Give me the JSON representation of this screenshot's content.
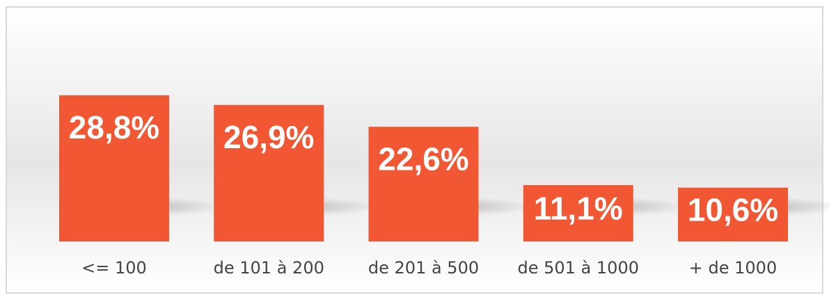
{
  "chart_data": {
    "type": "bar",
    "categories": [
      "<= 100",
      "de 101 à 200",
      "de 201 à 500",
      "de 501 à 1000",
      "+ de 1000"
    ],
    "values": [
      28.8,
      26.9,
      22.6,
      11.1,
      10.6
    ],
    "value_labels": [
      "28,8%",
      "26,9%",
      "22,6%",
      "11,1%",
      "10,6%"
    ],
    "color": "#f05732"
  }
}
